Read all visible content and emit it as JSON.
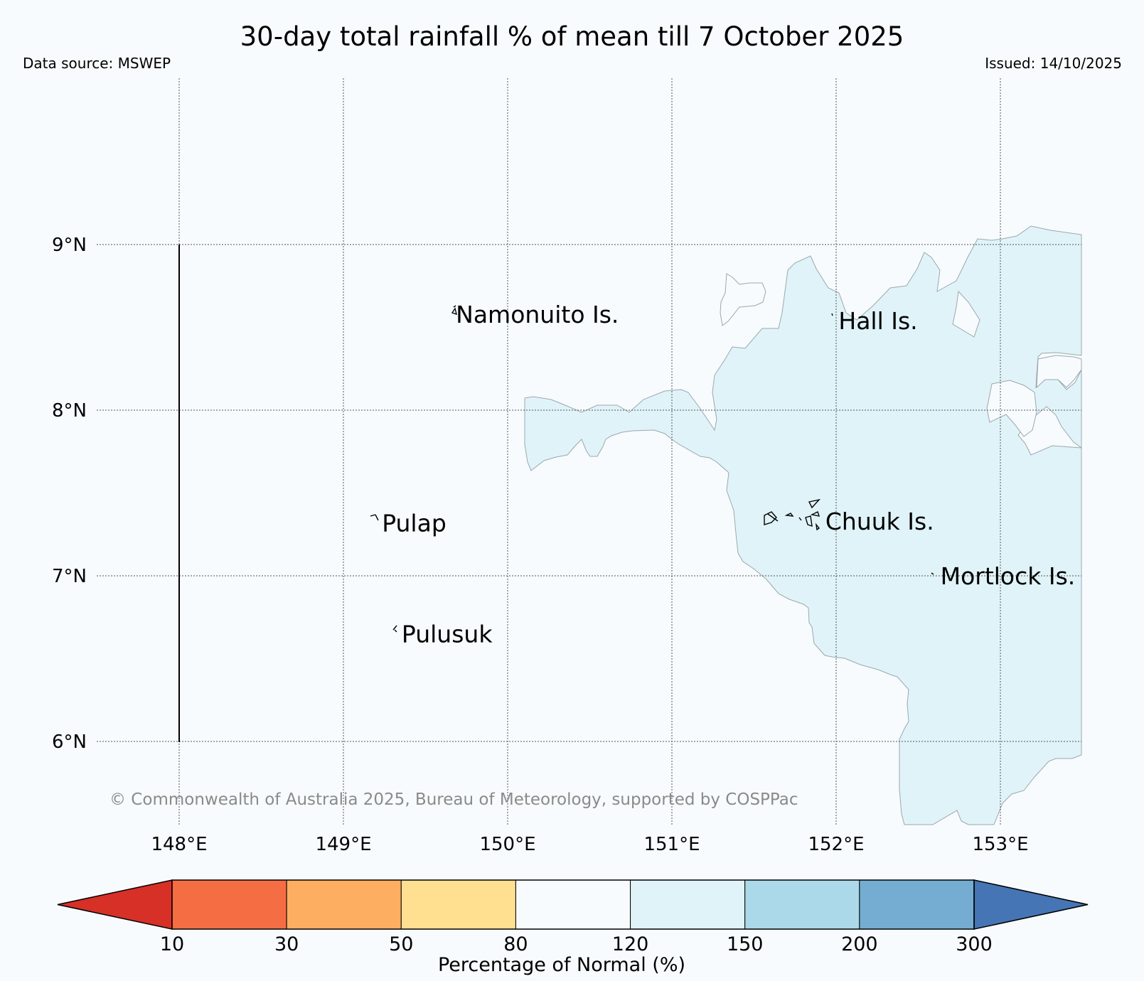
{
  "title": "30-day total rainfall % of mean till 7 October 2025",
  "data_source": "Data source: MSWEP",
  "issued": "Issued: 14/10/2025",
  "copyright": "© Commonwealth of Australia 2025, Bureau of Meteorology, supported by COSPPac",
  "map": {
    "lon_range": [
      147.5,
      153.5
    ],
    "lat_range": [
      5.5,
      10.0
    ],
    "lat_labels": [
      "9°N",
      "8°N",
      "7°N",
      "6°N"
    ],
    "lon_labels": [
      "148°E",
      "149°E",
      "150°E",
      "151°E",
      "152°E",
      "153°E"
    ],
    "places": [
      {
        "name": "Namonuito Is.",
        "lon": 149.65,
        "lat": 8.58
      },
      {
        "name": "Hall Is.",
        "lon": 151.98,
        "lat": 8.54
      },
      {
        "name": "Pulap",
        "lon": 149.2,
        "lat": 7.32
      },
      {
        "name": "Chuuk Is.",
        "lon": 151.9,
        "lat": 7.33
      },
      {
        "name": "Mortlock Is.",
        "lon": 152.6,
        "lat": 7.0
      },
      {
        "name": "Pulusuk",
        "lon": 149.32,
        "lat": 6.65
      }
    ],
    "shaded_category": "120-150",
    "shaded_color": "#e0f3f8"
  },
  "colorbar": {
    "title": "Percentage of Normal (%)",
    "ticks": [
      "10",
      "30",
      "50",
      "80",
      "120",
      "150",
      "200",
      "300"
    ],
    "colors": [
      "#d73027",
      "#f46d43",
      "#fdae61",
      "#fee090",
      "#f7fbfd",
      "#e0f3f8",
      "#abd9e9",
      "#74add1",
      "#4575b4"
    ]
  }
}
